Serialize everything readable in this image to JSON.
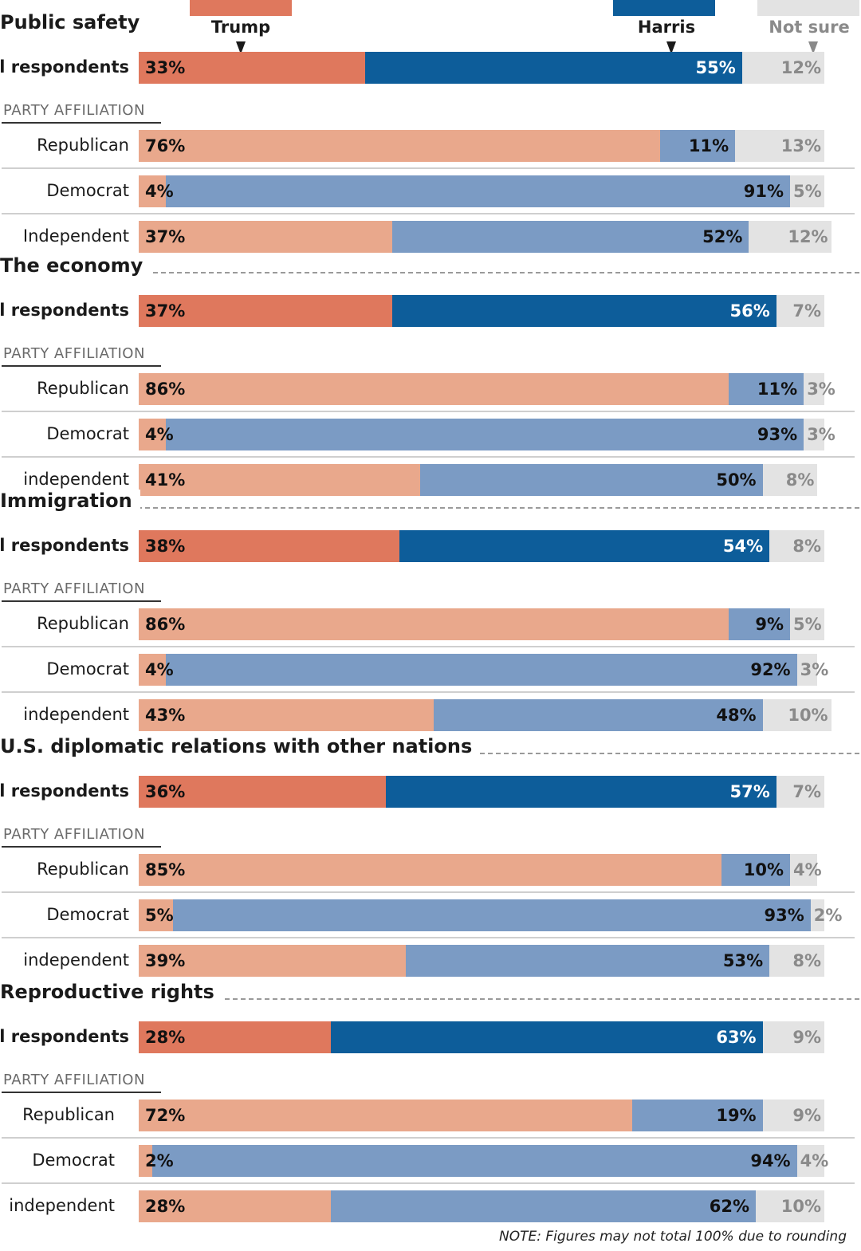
{
  "legend": [
    {
      "label": "Trump",
      "color": "#df785d"
    },
    {
      "label": "Harris",
      "color": "#0d5d9a"
    },
    {
      "label": "Not sure",
      "color": "#e3e3e3"
    }
  ],
  "party_heading": "PARTY AFFILIATION",
  "colors": {
    "trump_all": "#df785d",
    "harris_all": "#0d5d9a",
    "trump_party": "#e9a88c",
    "harris_party": "#7b9bc4",
    "not_sure": "#e3e3e3"
  },
  "note": "NOTE: Figures may not total 100% due to rounding",
  "chart_data": {
    "type": "bar",
    "orientation": "horizontal-stacked",
    "series": [
      {
        "name": "Trump"
      },
      {
        "name": "Harris"
      },
      {
        "name": "Not sure"
      }
    ],
    "xlim": [
      0,
      100
    ],
    "sections": [
      {
        "title": "Public safety",
        "rows": [
          {
            "label": "All respondents",
            "values": [
              33,
              55,
              12
            ],
            "labels": [
              "33%",
              "55%",
              "12%"
            ]
          },
          {
            "label": "Republican",
            "values": [
              76,
              11,
              13
            ],
            "labels": [
              "76%",
              "11%",
              "13%"
            ]
          },
          {
            "label": "Democrat",
            "values": [
              4,
              91,
              5
            ],
            "labels": [
              "4%",
              "91%",
              "5%"
            ]
          },
          {
            "label": "Independent",
            "values": [
              37,
              52,
              12
            ],
            "labels": [
              "37%",
              "52%",
              "12%"
            ]
          }
        ]
      },
      {
        "title": "The economy",
        "rows": [
          {
            "label": "All respondents",
            "values": [
              37,
              56,
              7
            ],
            "labels": [
              "37%",
              "56%",
              "7%"
            ]
          },
          {
            "label": "Republican",
            "values": [
              86,
              11,
              3
            ],
            "labels": [
              "86%",
              "11%",
              "3%"
            ]
          },
          {
            "label": "Democrat",
            "values": [
              4,
              93,
              3
            ],
            "labels": [
              "4%",
              "93%",
              "3%"
            ]
          },
          {
            "label": "independent",
            "values": [
              41,
              50,
              8
            ],
            "labels": [
              "41%",
              "50%",
              "8%"
            ]
          }
        ]
      },
      {
        "title": "Immigration",
        "rows": [
          {
            "label": "All respondents",
            "values": [
              38,
              54,
              8
            ],
            "labels": [
              "38%",
              "54%",
              "8%"
            ]
          },
          {
            "label": "Republican",
            "values": [
              86,
              9,
              5
            ],
            "labels": [
              "86%",
              "9%",
              "5%"
            ]
          },
          {
            "label": "Democrat",
            "values": [
              4,
              92,
              3
            ],
            "labels": [
              "4%",
              "92%",
              "3%"
            ]
          },
          {
            "label": "independent",
            "values": [
              43,
              48,
              10
            ],
            "labels": [
              "43%",
              "48%",
              "10%"
            ]
          }
        ]
      },
      {
        "title": "U.S. diplomatic relations with other nations",
        "rows": [
          {
            "label": "All respondents",
            "values": [
              36,
              57,
              7
            ],
            "labels": [
              "36%",
              "57%",
              "7%"
            ]
          },
          {
            "label": "Republican",
            "values": [
              85,
              10,
              4
            ],
            "labels": [
              "85%",
              "10%",
              "4%"
            ]
          },
          {
            "label": "Democrat",
            "values": [
              5,
              93,
              2
            ],
            "labels": [
              "5%",
              "93%",
              "2%"
            ]
          },
          {
            "label": "independent",
            "values": [
              39,
              53,
              8
            ],
            "labels": [
              "39%",
              "53%",
              "8%"
            ]
          }
        ]
      },
      {
        "title": "Reproductive rights",
        "rows": [
          {
            "label": "All respondents",
            "values": [
              28,
              63,
              9
            ],
            "labels": [
              "28%",
              "63%",
              "9%"
            ]
          },
          {
            "label": "Republican",
            "values": [
              72,
              19,
              9
            ],
            "labels": [
              "72%",
              "19%",
              "9%"
            ]
          },
          {
            "label": "Democrat",
            "values": [
              2,
              94,
              4
            ],
            "labels": [
              "2%",
              "94%",
              "4%"
            ]
          },
          {
            "label": "independent",
            "values": [
              28,
              62,
              10
            ],
            "labels": [
              "28%",
              "62%",
              "10%"
            ]
          }
        ]
      }
    ]
  }
}
